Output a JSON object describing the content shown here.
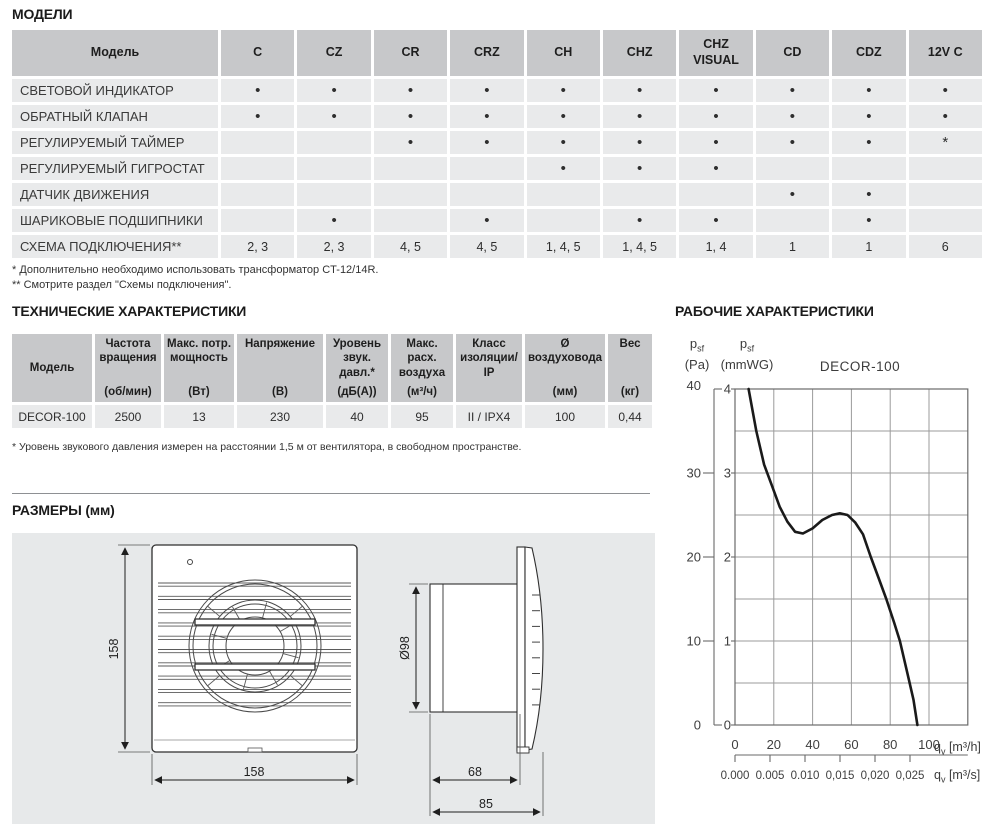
{
  "colors": {
    "table_header_bg": "#c7c8ca",
    "table_cell_bg": "#e9eaeb",
    "panel_bg": "#e7e9ea",
    "curve": "#1a1a1a",
    "grid": "#9b9b9b",
    "frame": "#6a6a6a"
  },
  "sections": {
    "models_title": "МОДЕЛИ",
    "tech_title": "ТЕХНИЧЕСКИЕ ХАРАКТЕРИСТИКИ",
    "dimensions_title": "РАЗМЕРЫ (мм)",
    "performance_title": "РАБОЧИЕ ХАРАКТЕРИСТИКИ"
  },
  "models_table": {
    "header": [
      "Модель",
      "C",
      "CZ",
      "CR",
      "CRZ",
      "CH",
      "CHZ",
      "CHZ VISUAL",
      "CD",
      "CDZ",
      "12V C"
    ],
    "rows": [
      {
        "label": "СВЕТОВОЙ ИНДИКАТОР",
        "values": [
          "•",
          "•",
          "•",
          "•",
          "•",
          "•",
          "•",
          "•",
          "•",
          "•"
        ]
      },
      {
        "label": "ОБРАТНЫЙ КЛАПАН",
        "values": [
          "•",
          "•",
          "•",
          "•",
          "•",
          "•",
          "•",
          "•",
          "•",
          "•"
        ]
      },
      {
        "label": "РЕГУЛИРУЕМЫЙ ТАЙМЕР",
        "values": [
          "",
          "",
          "•",
          "•",
          "•",
          "•",
          "•",
          "•",
          "•",
          "*"
        ]
      },
      {
        "label": "РЕГУЛИРУЕМЫЙ ГИГРОСТАТ",
        "values": [
          "",
          "",
          "",
          "",
          "•",
          "•",
          "•",
          "",
          "",
          ""
        ]
      },
      {
        "label": "ДАТЧИК ДВИЖЕНИЯ",
        "values": [
          "",
          "",
          "",
          "",
          "",
          "",
          "",
          "•",
          "•",
          ""
        ]
      },
      {
        "label": "ШАРИКОВЫЕ ПОДШИПНИКИ",
        "values": [
          "",
          "•",
          "",
          "•",
          "",
          "•",
          "•",
          "",
          "•",
          ""
        ]
      },
      {
        "label": "СХЕМА ПОДКЛЮЧЕНИЯ**",
        "values": [
          "2, 3",
          "2, 3",
          "4, 5",
          "4, 5",
          "1, 4, 5",
          "1, 4, 5",
          "1, 4",
          "1",
          "1",
          "6"
        ]
      }
    ],
    "footnote1": "* Дополнительно необходимо использовать трансформатор CT-12/14R.",
    "footnote2": "** Смотрите раздел \"Схемы подключения\"."
  },
  "tech_table": {
    "columns": [
      {
        "name": "Модель",
        "unit": ""
      },
      {
        "name": "Частота вращения",
        "unit": "(об/мин)"
      },
      {
        "name": "Макс. потр. мощность",
        "unit": "(Вт)"
      },
      {
        "name": "Напряжение",
        "unit": "(В)"
      },
      {
        "name": "Уровень звук. давл.*",
        "unit": "(дБ(А))"
      },
      {
        "name": "Макс. расх. воздуха",
        "unit": "(м³/ч)"
      },
      {
        "name": "Класс изоляции/ IP",
        "unit": ""
      },
      {
        "name": "Ø воздуховода",
        "unit": "(мм)"
      },
      {
        "name": "Вес",
        "unit": "(кг)"
      }
    ],
    "row": [
      "DECOR-100",
      "2500",
      "13",
      "230",
      "40",
      "95",
      "II / IPX4",
      "100",
      "0,44"
    ],
    "footnote": "* Уровень звукового давления измерен на расстоянии 1,5 м от вентилятора, в свободном пространстве."
  },
  "dimensions": {
    "front_height": "158",
    "front_width": "158",
    "duct_diameter": "Ø98",
    "duct_depth": "68",
    "total_depth": "85"
  },
  "chart_data": {
    "type": "line",
    "title": "DECOR-100",
    "series": [
      {
        "name": "DECOR-100",
        "x_m3h": [
          7,
          11,
          15,
          19,
          23,
          27,
          31,
          35,
          40,
          45,
          50,
          54,
          58,
          62,
          66,
          70,
          74,
          78,
          82,
          85,
          89,
          92,
          94
        ],
        "y_mmwg": [
          4.0,
          3.5,
          3.1,
          2.85,
          2.6,
          2.42,
          2.3,
          2.28,
          2.34,
          2.44,
          2.5,
          2.52,
          2.5,
          2.41,
          2.27,
          2.0,
          1.75,
          1.5,
          1.22,
          1.0,
          0.6,
          0.3,
          0.0
        ]
      }
    ],
    "axes": {
      "pressure_pa": {
        "sym": "p",
        "sub": "sf",
        "unit": "(Pa)",
        "ticks": [
          40,
          30,
          20,
          10,
          0
        ]
      },
      "pressure_mmwg": {
        "sym": "p",
        "sub": "sf",
        "unit": "(mmWG)",
        "ticks": [
          4,
          3,
          2,
          1,
          0
        ]
      },
      "flow_m3h": {
        "sym": "q",
        "sub": "v",
        "unit": "[m³/h]",
        "ticks": [
          0,
          20,
          40,
          60,
          80,
          100
        ]
      },
      "flow_m3s": {
        "sym": "q",
        "sub": "v",
        "unit": "[m³/s]",
        "tick_labels": [
          "0.000",
          "0.005",
          "0.010",
          "0,015",
          "0,020",
          "0,025"
        ]
      }
    },
    "xlim_display_m3h": [
      0,
      120
    ],
    "ylim_mmwg": [
      0,
      4
    ],
    "x_grid_step_m3h": 20,
    "y_grid_step_mmwg": 0.5,
    "grid": true,
    "legend_position": "none"
  }
}
